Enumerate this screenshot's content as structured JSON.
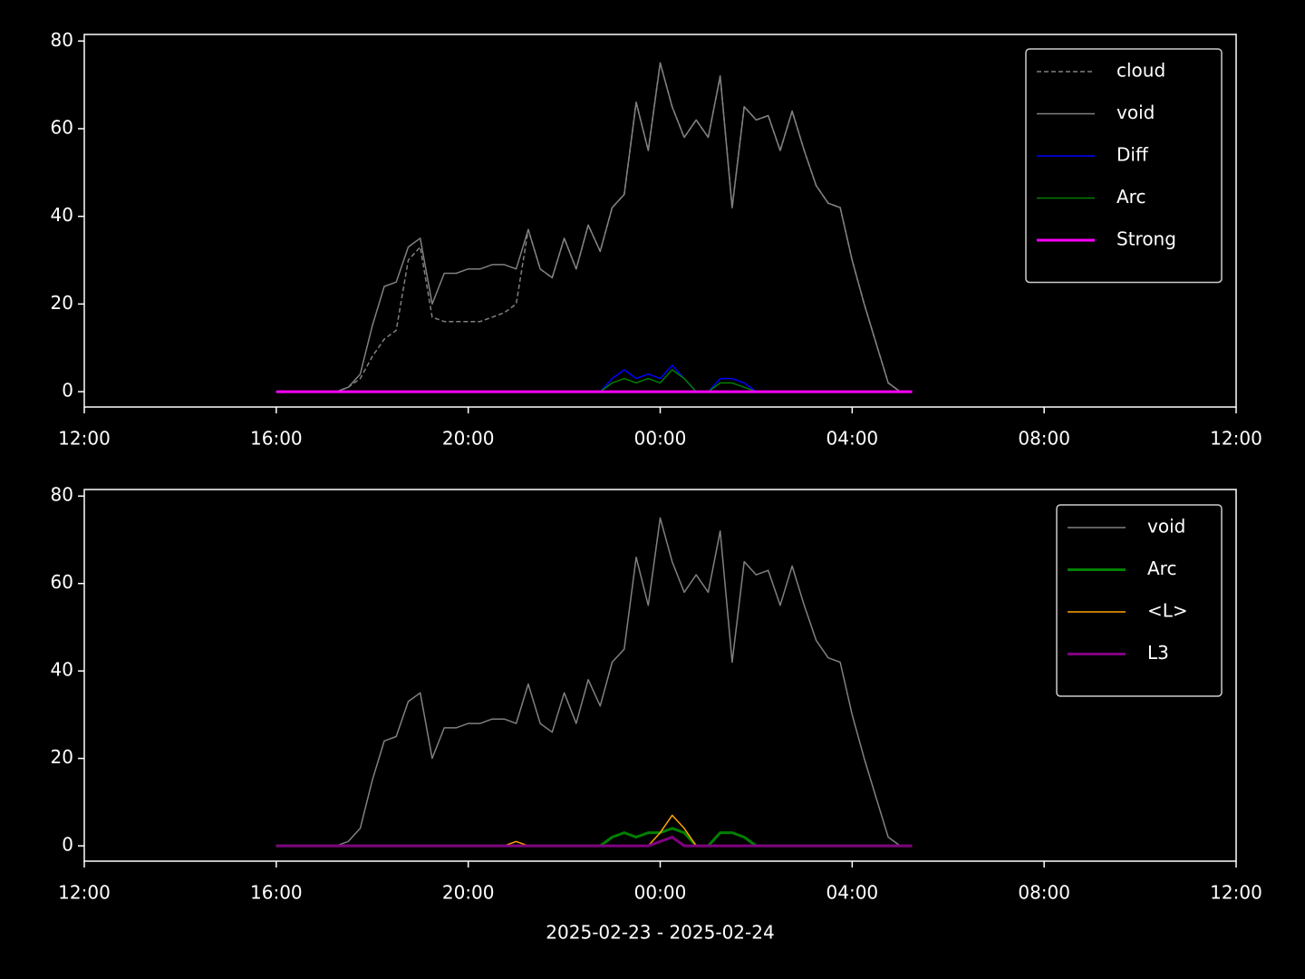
{
  "chart_data": [
    {
      "type": "line",
      "x": [
        "2025-02-23T16:00",
        "2025-02-23T16:15",
        "2025-02-23T16:30",
        "2025-02-23T16:45",
        "2025-02-23T17:00",
        "2025-02-23T17:15",
        "2025-02-23T17:30",
        "2025-02-23T17:45",
        "2025-02-23T18:00",
        "2025-02-23T18:15",
        "2025-02-23T18:30",
        "2025-02-23T18:45",
        "2025-02-23T19:00",
        "2025-02-23T19:15",
        "2025-02-23T19:30",
        "2025-02-23T19:45",
        "2025-02-23T20:00",
        "2025-02-23T20:15",
        "2025-02-23T20:30",
        "2025-02-23T20:45",
        "2025-02-23T21:00",
        "2025-02-23T21:15",
        "2025-02-23T21:30",
        "2025-02-23T21:45",
        "2025-02-23T22:00",
        "2025-02-23T22:15",
        "2025-02-23T22:30",
        "2025-02-23T22:45",
        "2025-02-23T23:00",
        "2025-02-23T23:15",
        "2025-02-23T23:30",
        "2025-02-23T23:45",
        "2025-02-24T00:00",
        "2025-02-24T00:15",
        "2025-02-24T00:30",
        "2025-02-24T00:45",
        "2025-02-24T01:00",
        "2025-02-24T01:15",
        "2025-02-24T01:30",
        "2025-02-24T01:45",
        "2025-02-24T02:00",
        "2025-02-24T02:15",
        "2025-02-24T02:30",
        "2025-02-24T02:45",
        "2025-02-24T03:00",
        "2025-02-24T03:15",
        "2025-02-24T03:30",
        "2025-02-24T03:45",
        "2025-02-24T04:00",
        "2025-02-24T04:15",
        "2025-02-24T04:30",
        "2025-02-24T04:45",
        "2025-02-24T05:00",
        "2025-02-24T05:15"
      ],
      "series": [
        {
          "name": "cloud",
          "color": "#808080",
          "linewidth": 1.5,
          "linestyle": "dashed",
          "values": [
            0,
            0,
            0,
            0,
            0,
            0,
            1,
            3,
            8,
            12,
            14,
            30,
            33,
            17,
            16,
            16,
            16,
            16,
            17,
            18,
            20,
            37,
            28,
            26,
            35,
            28,
            38,
            32,
            42,
            45,
            66,
            55,
            75,
            65,
            58,
            62,
            58,
            72,
            42,
            65,
            62,
            63,
            55,
            64,
            55,
            47,
            43,
            42,
            30,
            20,
            11,
            2,
            0,
            0
          ]
        },
        {
          "name": "void",
          "color": "#808080",
          "linewidth": 1.5,
          "linestyle": "solid",
          "values": [
            0,
            0,
            0,
            0,
            0,
            0,
            1,
            4,
            15,
            24,
            25,
            33,
            35,
            20,
            27,
            27,
            28,
            28,
            29,
            29,
            28,
            37,
            28,
            26,
            35,
            28,
            38,
            32,
            42,
            45,
            66,
            55,
            75,
            65,
            58,
            62,
            58,
            72,
            42,
            65,
            62,
            63,
            55,
            64,
            55,
            47,
            43,
            42,
            30,
            20,
            11,
            2,
            0,
            0
          ]
        },
        {
          "name": "Diff",
          "color": "#0000ff",
          "linewidth": 1.5,
          "linestyle": "solid",
          "values": [
            0,
            0,
            0,
            0,
            0,
            0,
            0,
            0,
            0,
            0,
            0,
            0,
            0,
            0,
            0,
            0,
            0,
            0,
            0,
            0,
            0,
            0,
            0,
            0,
            0,
            0,
            0,
            0,
            3,
            5,
            3,
            4,
            3,
            6,
            3,
            0,
            0,
            3,
            3,
            2,
            0,
            0,
            0,
            0,
            0,
            0,
            0,
            0,
            0,
            0,
            0,
            0,
            0,
            0
          ]
        },
        {
          "name": "Arc",
          "color": "#008000",
          "linewidth": 1.5,
          "linestyle": "solid",
          "values": [
            0,
            0,
            0,
            0,
            0,
            0,
            0,
            0,
            0,
            0,
            0,
            0,
            0,
            0,
            0,
            0,
            0,
            0,
            0,
            0,
            0,
            0,
            0,
            0,
            0,
            0,
            0,
            0,
            2,
            3,
            2,
            3,
            2,
            5,
            3,
            0,
            0,
            2,
            2,
            1,
            0,
            0,
            0,
            0,
            0,
            0,
            0,
            0,
            0,
            0,
            0,
            0,
            0,
            0
          ]
        },
        {
          "name": "Strong",
          "color": "#ff00ff",
          "linewidth": 3,
          "linestyle": "solid",
          "values": [
            0,
            0,
            0,
            0,
            0,
            0,
            0,
            0,
            0,
            0,
            0,
            0,
            0,
            0,
            0,
            0,
            0,
            0,
            0,
            0,
            0,
            0,
            0,
            0,
            0,
            0,
            0,
            0,
            0,
            0,
            0,
            0,
            0,
            0,
            0,
            0,
            0,
            0,
            0,
            0,
            0,
            0,
            0,
            0,
            0,
            0,
            0,
            0,
            0,
            0,
            0,
            0,
            0,
            0
          ]
        }
      ],
      "xlim": [
        "2025-02-23T12:00",
        "2025-02-24T12:00"
      ],
      "xticks": [
        {
          "value": "2025-02-23T12:00",
          "label": "12:00"
        },
        {
          "value": "2025-02-23T16:00",
          "label": "16:00"
        },
        {
          "value": "2025-02-23T20:00",
          "label": "20:00"
        },
        {
          "value": "2025-02-24T00:00",
          "label": "00:00"
        },
        {
          "value": "2025-02-24T04:00",
          "label": "04:00"
        },
        {
          "value": "2025-02-24T08:00",
          "label": "08:00"
        },
        {
          "value": "2025-02-24T12:00",
          "label": "12:00"
        }
      ],
      "ylim": [
        -3.5,
        81.5
      ],
      "yticks": [
        0,
        20,
        40,
        60,
        80
      ],
      "legend": "upper right"
    },
    {
      "type": "line",
      "x": [
        "2025-02-23T16:00",
        "2025-02-23T16:15",
        "2025-02-23T16:30",
        "2025-02-23T16:45",
        "2025-02-23T17:00",
        "2025-02-23T17:15",
        "2025-02-23T17:30",
        "2025-02-23T17:45",
        "2025-02-23T18:00",
        "2025-02-23T18:15",
        "2025-02-23T18:30",
        "2025-02-23T18:45",
        "2025-02-23T19:00",
        "2025-02-23T19:15",
        "2025-02-23T19:30",
        "2025-02-23T19:45",
        "2025-02-23T20:00",
        "2025-02-23T20:15",
        "2025-02-23T20:30",
        "2025-02-23T20:45",
        "2025-02-23T21:00",
        "2025-02-23T21:15",
        "2025-02-23T21:30",
        "2025-02-23T21:45",
        "2025-02-23T22:00",
        "2025-02-23T22:15",
        "2025-02-23T22:30",
        "2025-02-23T22:45",
        "2025-02-23T23:00",
        "2025-02-23T23:15",
        "2025-02-23T23:30",
        "2025-02-23T23:45",
        "2025-02-24T00:00",
        "2025-02-24T00:15",
        "2025-02-24T00:30",
        "2025-02-24T00:45",
        "2025-02-24T01:00",
        "2025-02-24T01:15",
        "2025-02-24T01:30",
        "2025-02-24T01:45",
        "2025-02-24T02:00",
        "2025-02-24T02:15",
        "2025-02-24T02:30",
        "2025-02-24T02:45",
        "2025-02-24T03:00",
        "2025-02-24T03:15",
        "2025-02-24T03:30",
        "2025-02-24T03:45",
        "2025-02-24T04:00",
        "2025-02-24T04:15",
        "2025-02-24T04:30",
        "2025-02-24T04:45",
        "2025-02-24T05:00",
        "2025-02-24T05:15"
      ],
      "series": [
        {
          "name": "void",
          "color": "#808080",
          "linewidth": 1.5,
          "linestyle": "solid",
          "values": [
            0,
            0,
            0,
            0,
            0,
            0,
            1,
            4,
            15,
            24,
            25,
            33,
            35,
            20,
            27,
            27,
            28,
            28,
            29,
            29,
            28,
            37,
            28,
            26,
            35,
            28,
            38,
            32,
            42,
            45,
            66,
            55,
            75,
            65,
            58,
            62,
            58,
            72,
            42,
            65,
            62,
            63,
            55,
            64,
            55,
            47,
            43,
            42,
            30,
            20,
            11,
            2,
            0,
            0
          ]
        },
        {
          "name": "Arc",
          "color": "#008000",
          "linewidth": 3,
          "linestyle": "solid",
          "values": [
            0,
            0,
            0,
            0,
            0,
            0,
            0,
            0,
            0,
            0,
            0,
            0,
            0,
            0,
            0,
            0,
            0,
            0,
            0,
            0,
            0,
            0,
            0,
            0,
            0,
            0,
            0,
            0,
            2,
            3,
            2,
            3,
            3,
            4,
            3,
            0,
            0,
            3,
            3,
            2,
            0,
            0,
            0,
            0,
            0,
            0,
            0,
            0,
            0,
            0,
            0,
            0,
            0,
            0
          ]
        },
        {
          "name": "<L>",
          "color": "#ffa500",
          "linewidth": 1.5,
          "linestyle": "solid",
          "values": [
            0,
            0,
            0,
            0,
            0,
            0,
            0,
            0,
            0,
            0,
            0,
            0,
            0,
            0,
            0,
            0,
            0,
            0,
            0,
            0,
            1,
            0,
            0,
            0,
            0,
            0,
            0,
            0,
            0,
            0,
            0,
            0,
            3,
            7,
            4,
            0,
            0,
            0,
            0,
            0,
            0,
            0,
            0,
            0,
            0,
            0,
            0,
            0,
            0,
            0,
            0,
            0,
            0,
            0
          ]
        },
        {
          "name": "L3",
          "color": "#800080",
          "linewidth": 3,
          "linestyle": "solid",
          "values": [
            0,
            0,
            0,
            0,
            0,
            0,
            0,
            0,
            0,
            0,
            0,
            0,
            0,
            0,
            0,
            0,
            0,
            0,
            0,
            0,
            0,
            0,
            0,
            0,
            0,
            0,
            0,
            0,
            0,
            0,
            0,
            0,
            1,
            2,
            0,
            0,
            0,
            0,
            0,
            0,
            0,
            0,
            0,
            0,
            0,
            0,
            0,
            0,
            0,
            0,
            0,
            0,
            0,
            0
          ]
        }
      ],
      "xlim": [
        "2025-02-23T12:00",
        "2025-02-24T12:00"
      ],
      "xticks": [
        {
          "value": "2025-02-23T12:00",
          "label": "12:00"
        },
        {
          "value": "2025-02-23T16:00",
          "label": "16:00"
        },
        {
          "value": "2025-02-23T20:00",
          "label": "20:00"
        },
        {
          "value": "2025-02-24T00:00",
          "label": "00:00"
        },
        {
          "value": "2025-02-24T04:00",
          "label": "04:00"
        },
        {
          "value": "2025-02-24T08:00",
          "label": "08:00"
        },
        {
          "value": "2025-02-24T12:00",
          "label": "12:00"
        }
      ],
      "ylim": [
        -3.5,
        81.5
      ],
      "yticks": [
        0,
        20,
        40,
        60,
        80
      ],
      "legend": "upper right",
      "xlabel": "2025-02-23 - 2025-02-24"
    }
  ]
}
